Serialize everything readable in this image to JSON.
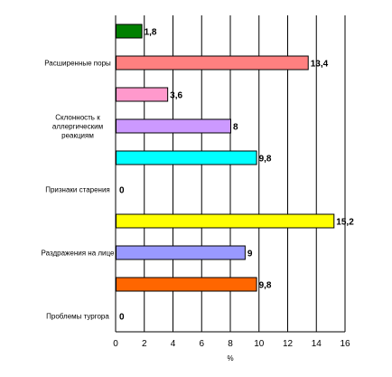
{
  "chart_data": {
    "type": "bar",
    "orientation": "horizontal",
    "categories": [
      "",
      "Расширенные поры",
      "",
      "Склонность к аллергическим реакциям",
      "",
      "Признаки старения",
      "",
      "Раздражения на лице",
      "",
      "Проблемы тургора"
    ],
    "category_lines": [
      [],
      [
        "Расширенные поры"
      ],
      [],
      [
        "Склонность к",
        "аллергическим",
        "реакциям"
      ],
      [],
      [
        "Признаки старения"
      ],
      [],
      [
        "Раздражения на лице"
      ],
      [],
      [
        "Проблемы тургора"
      ]
    ],
    "values": [
      1.8,
      13.4,
      3.6,
      8,
      9.8,
      0,
      15.2,
      9,
      9.8,
      0
    ],
    "value_labels": [
      "1,8",
      "13,4",
      "3,6",
      "8",
      "9,8",
      "0",
      "15,2",
      "9",
      "9,8",
      "0"
    ],
    "colors": [
      "#008000",
      "#ff8080",
      "#ff99cc",
      "#cc99ff",
      "#00ffff",
      "#00ffff",
      "#ffff00",
      "#9999ff",
      "#ff6600",
      "#ff6600"
    ],
    "xlim": [
      0,
      16
    ],
    "xticks": [
      0,
      2,
      4,
      6,
      8,
      10,
      12,
      14,
      16
    ],
    "xlabel": "%",
    "ylabel": "",
    "title": "",
    "grid": "vertical",
    "legend": "none"
  }
}
